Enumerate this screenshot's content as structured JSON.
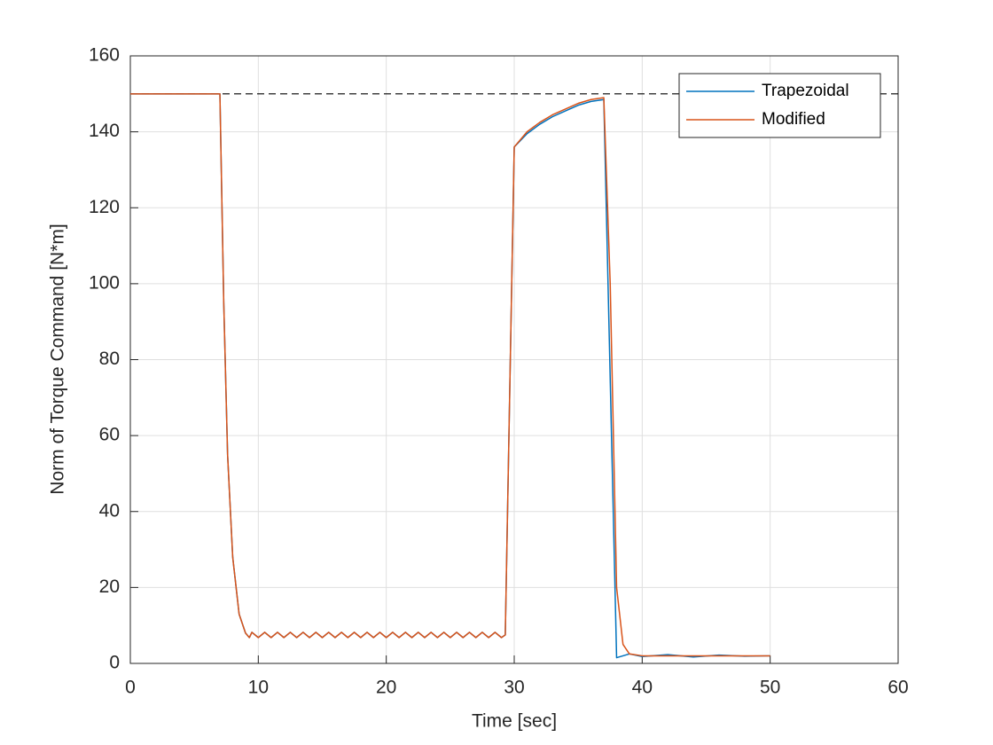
{
  "chart_data": {
    "type": "line",
    "x_label": "Time [sec]",
    "y_label": "Norm of Torque Command [N*m]",
    "xlim": [
      0,
      60
    ],
    "xticks": [
      0,
      10,
      20,
      30,
      40,
      50,
      60
    ],
    "ylim": [
      0,
      160
    ],
    "yticks": [
      0,
      20,
      40,
      60,
      80,
      100,
      120,
      140,
      160
    ],
    "grid": true,
    "legend": "upper-right",
    "reference_line": 150,
    "reference_color": "#000000",
    "x": [
      0,
      7,
      7.3,
      7.6,
      8,
      8.5,
      9,
      9.3,
      9.5,
      10,
      10.5,
      11,
      11.5,
      12,
      12.5,
      13,
      13.5,
      14,
      14.5,
      15,
      15.5,
      16,
      16.5,
      17,
      17.5,
      18,
      18.5,
      19,
      19.5,
      20,
      20.5,
      21,
      21.5,
      22,
      22.5,
      23,
      23.5,
      24,
      24.5,
      25,
      25.5,
      26,
      26.5,
      27,
      27.5,
      28,
      28.5,
      29,
      29.3,
      30,
      31,
      32,
      33,
      34,
      35,
      36,
      37,
      37.5,
      38,
      38.5,
      39,
      40,
      42,
      44,
      46,
      48,
      50
    ],
    "series": [
      {
        "name": "Trapezoidal",
        "color": "#0072bd",
        "values": [
          150,
          150,
          95,
          55,
          28,
          13,
          8,
          6.8,
          8.2,
          6.8,
          8.2,
          6.8,
          8.2,
          6.8,
          8.2,
          6.8,
          8.2,
          6.8,
          8.2,
          6.8,
          8.2,
          6.8,
          8.2,
          6.8,
          8.2,
          6.8,
          8.2,
          6.8,
          8.2,
          6.8,
          8.2,
          6.8,
          8.2,
          6.8,
          8.2,
          6.8,
          8.2,
          6.8,
          8.2,
          6.8,
          8.2,
          6.8,
          8.2,
          6.8,
          8.2,
          6.8,
          8.2,
          6.8,
          7.5,
          136,
          139.5,
          142,
          144,
          145.5,
          147,
          148,
          148.5,
          75,
          1.5,
          2,
          2.5,
          1.8,
          2.3,
          1.7,
          2.2,
          1.9,
          2
        ]
      },
      {
        "name": "Modified",
        "color": "#d95319",
        "values": [
          150,
          150,
          95,
          55,
          28,
          13,
          8,
          6.8,
          8.2,
          6.8,
          8.2,
          6.8,
          8.2,
          6.8,
          8.2,
          6.8,
          8.2,
          6.8,
          8.2,
          6.8,
          8.2,
          6.8,
          8.2,
          6.8,
          8.2,
          6.8,
          8.2,
          6.8,
          8.2,
          6.8,
          8.2,
          6.8,
          8.2,
          6.8,
          8.2,
          6.8,
          8.2,
          6.8,
          8.2,
          6.8,
          8.2,
          6.8,
          8.2,
          6.8,
          8.2,
          6.8,
          8.2,
          6.8,
          7.5,
          136,
          140,
          142.5,
          144.5,
          146,
          147.5,
          148.5,
          149,
          100,
          20,
          5,
          2.5,
          2,
          2,
          2,
          2,
          2,
          2
        ]
      }
    ]
  }
}
